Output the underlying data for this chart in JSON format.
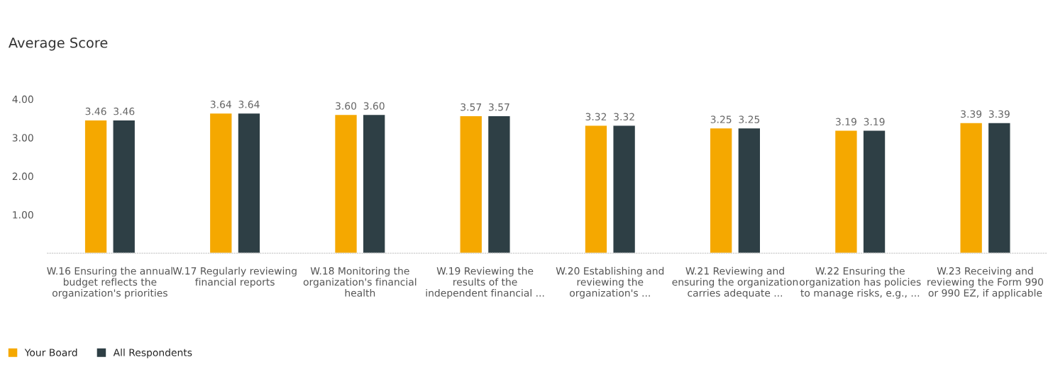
{
  "chart_data": {
    "type": "bar",
    "title": "Average Score",
    "categories": [
      "W.16 Ensuring the annual\nbudget reflects the\norganization's priorities",
      "W.17 Regularly reviewing\nfinancial reports",
      "W.18 Monitoring the\norganization's financial\nhealth",
      "W.19 Reviewing the\nresults of the\nindependent financial ...",
      "W.20 Establishing and\nreviewing the\norganization's ...",
      "W.21 Reviewing and\nensuring the organization\ncarries adequate ...",
      "W.22 Ensuring the\norganization has policies\nto manage risks, e.g., ...",
      "W.23 Receiving and\nreviewing the Form 990\nor 990 EZ, if applicable"
    ],
    "series": [
      {
        "name": "Your Board",
        "color": "#f5a800",
        "values": [
          3.46,
          3.64,
          3.6,
          3.57,
          3.32,
          3.25,
          3.19,
          3.39
        ],
        "value_labels": [
          "3.46",
          "3.64",
          "3.60",
          "3.57",
          "3.32",
          "3.25",
          "3.19",
          "3.39"
        ]
      },
      {
        "name": "All Respondents",
        "color": "#2e3f45",
        "values": [
          3.46,
          3.64,
          3.6,
          3.57,
          3.32,
          3.25,
          3.19,
          3.39
        ],
        "value_labels": [
          "3.46",
          "3.64",
          "3.60",
          "3.57",
          "3.32",
          "3.25",
          "3.19",
          "3.39"
        ]
      }
    ],
    "ylim": [
      0,
      4
    ],
    "yticks": [
      {
        "value": 1,
        "label": "1.00"
      },
      {
        "value": 2,
        "label": "2.00"
      },
      {
        "value": 3,
        "label": "3.00"
      },
      {
        "value": 4,
        "label": "4.00"
      }
    ],
    "data_labels": true,
    "grid": false,
    "legend": "bottom left"
  }
}
